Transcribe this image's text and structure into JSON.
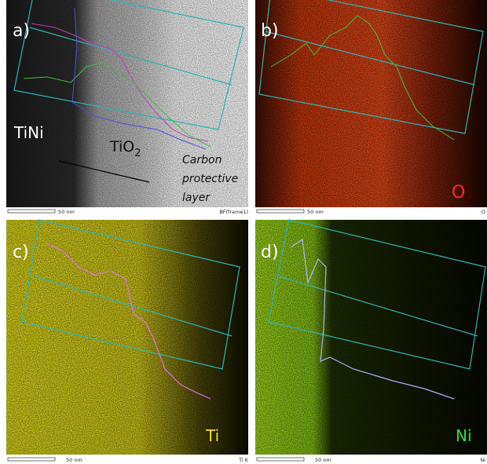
{
  "figure": {
    "panels": [
      {
        "label": "a)",
        "scale": "50 nm",
        "footer": "BF(frame1)",
        "annotations": {
          "matrix": "TiNi",
          "oxide": {
            "text": "TiO",
            "subscript": "2"
          },
          "coating": [
            "Carbon",
            "protective",
            "layer"
          ]
        }
      },
      {
        "label": "b)",
        "element": "O",
        "scale": "50 nm",
        "footer": "O"
      },
      {
        "label": "c)",
        "element": "Ti",
        "scale": "50 nm",
        "footer": "Ti K"
      },
      {
        "label": "d)",
        "element": "Ni",
        "scale": "50 nm",
        "footer": "Ni"
      }
    ]
  }
}
